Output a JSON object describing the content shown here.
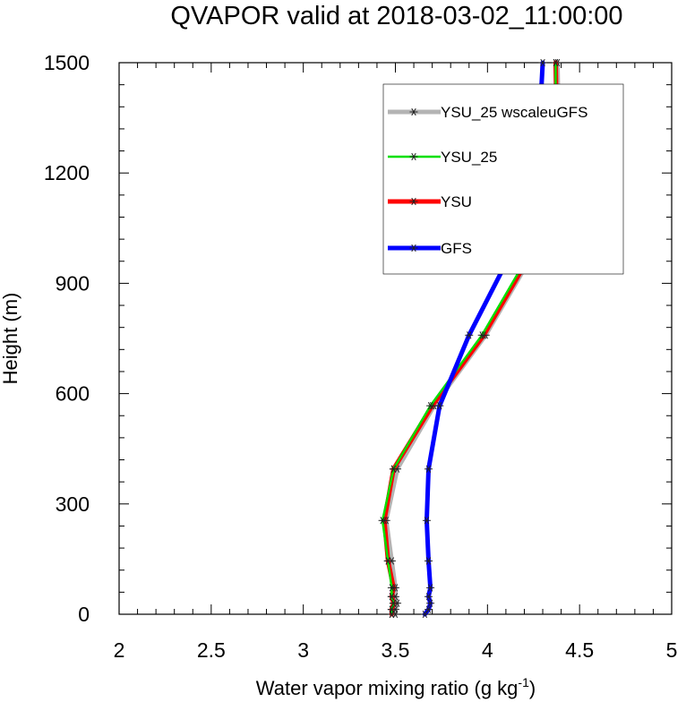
{
  "chart_data": {
    "type": "line",
    "title": "QVAPOR valid at 2018-03-02_11:00:00",
    "xlabel": "Water vapor mixing ratio (g kg",
    "xlabel_sup": "-1",
    "xlabel_close": ")",
    "ylabel": "Height (m)",
    "xlim": [
      2,
      5
    ],
    "ylim": [
      0,
      1500
    ],
    "xticks": [
      2,
      2.5,
      3,
      3.5,
      4,
      4.5,
      5
    ],
    "xtick_labels": [
      "2",
      "2.5",
      "3",
      "3.5",
      "4",
      "4.5",
      "5"
    ],
    "yticks": [
      0,
      300,
      600,
      900,
      1200,
      1500
    ],
    "ytick_labels": [
      "0",
      "300",
      "600",
      "900",
      "1200",
      "1500"
    ],
    "legend_position": "top-right",
    "series": [
      {
        "name": "YSU_25 wscaleuGFS",
        "color": "#b4b4b4",
        "marker": "asterisk",
        "points": [
          [
            3.5,
            0
          ],
          [
            3.5,
            13
          ],
          [
            3.51,
            30
          ],
          [
            3.5,
            48
          ],
          [
            3.5,
            72
          ],
          [
            3.48,
            145
          ],
          [
            3.45,
            255
          ],
          [
            3.51,
            395
          ],
          [
            3.71,
            567
          ],
          [
            3.99,
            759
          ],
          [
            4.24,
            974
          ],
          [
            4.39,
            1220
          ],
          [
            4.38,
            1500
          ]
        ]
      },
      {
        "name": "YSU_25",
        "color": "#00e000",
        "marker": "asterisk",
        "points": [
          [
            3.48,
            0
          ],
          [
            3.48,
            13
          ],
          [
            3.49,
            30
          ],
          [
            3.48,
            48
          ],
          [
            3.48,
            72
          ],
          [
            3.46,
            145
          ],
          [
            3.43,
            255
          ],
          [
            3.49,
            395
          ],
          [
            3.69,
            567
          ],
          [
            3.97,
            759
          ],
          [
            4.22,
            974
          ],
          [
            4.37,
            1220
          ],
          [
            4.37,
            1500
          ]
        ]
      },
      {
        "name": "YSU",
        "color": "#ff0000",
        "marker": "asterisk",
        "points": [
          [
            3.48,
            0
          ],
          [
            3.48,
            13
          ],
          [
            3.49,
            30
          ],
          [
            3.48,
            48
          ],
          [
            3.49,
            72
          ],
          [
            3.46,
            145
          ],
          [
            3.44,
            255
          ],
          [
            3.49,
            395
          ],
          [
            3.7,
            567
          ],
          [
            3.98,
            759
          ],
          [
            4.23,
            974
          ],
          [
            4.38,
            1220
          ],
          [
            4.37,
            1500
          ]
        ]
      },
      {
        "name": "GFS",
        "color": "#0000ff",
        "marker": "asterisk",
        "points": [
          [
            3.66,
            0
          ],
          [
            3.68,
            13
          ],
          [
            3.69,
            30
          ],
          [
            3.68,
            48
          ],
          [
            3.69,
            72
          ],
          [
            3.68,
            145
          ],
          [
            3.67,
            255
          ],
          [
            3.68,
            395
          ],
          [
            3.74,
            567
          ],
          [
            3.9,
            759
          ],
          [
            4.12,
            974
          ],
          [
            4.27,
            1220
          ],
          [
            4.3,
            1500
          ]
        ]
      }
    ]
  }
}
